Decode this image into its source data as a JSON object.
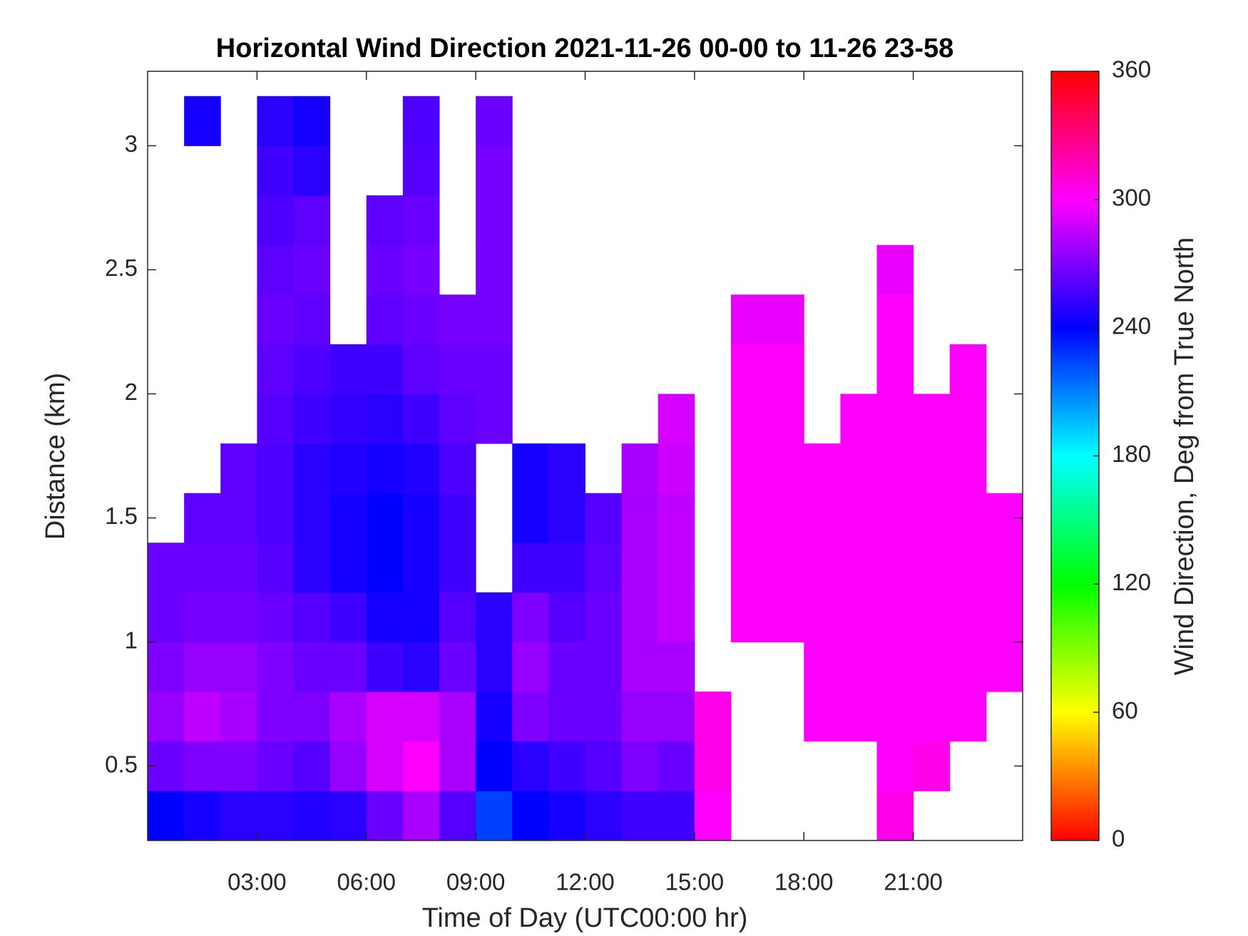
{
  "chart_data": {
    "type": "heatmap",
    "title": "Horizontal Wind Direction 2021-11-26 00-00 to 11-26 23-58",
    "x_label": "Time of Day (UTC00:00 hr)",
    "y_label": "Distance (km)",
    "colorbar_label": "Wind Direction, Deg from True North",
    "colormap": "hsv",
    "x": [
      0.5,
      1.5,
      2.5,
      3.5,
      4.5,
      5.5,
      6.5,
      7.5,
      8.5,
      9.5,
      10.5,
      11.5,
      12.5,
      13.5,
      14.5,
      15.5,
      16.5,
      17.5,
      18.5,
      19.5,
      20.5,
      21.5,
      22.5,
      23.5
    ],
    "y": [
      0.3,
      0.5,
      0.7,
      0.9,
      1.1,
      1.3,
      1.5,
      1.7,
      1.9,
      2.1,
      2.3,
      2.5,
      2.7,
      2.9,
      3.1
    ],
    "values": [
      [
        240,
        245,
        250,
        250,
        248,
        250,
        265,
        280,
        260,
        225,
        240,
        245,
        250,
        255,
        255,
        300,
        null,
        null,
        null,
        null,
        305,
        null,
        null,
        null
      ],
      [
        265,
        270,
        270,
        265,
        260,
        275,
        290,
        300,
        280,
        240,
        250,
        255,
        260,
        270,
        265,
        305,
        null,
        null,
        null,
        null,
        300,
        305,
        null,
        null
      ],
      [
        275,
        285,
        280,
        270,
        270,
        280,
        290,
        290,
        280,
        245,
        270,
        265,
        265,
        275,
        275,
        305,
        null,
        null,
        300,
        300,
        300,
        300,
        300,
        null
      ],
      [
        270,
        275,
        275,
        270,
        265,
        265,
        255,
        250,
        265,
        250,
        275,
        265,
        265,
        280,
        280,
        null,
        null,
        null,
        300,
        300,
        300,
        300,
        300,
        300
      ],
      [
        265,
        268,
        268,
        265,
        260,
        255,
        245,
        245,
        260,
        250,
        270,
        260,
        265,
        280,
        285,
        null,
        300,
        300,
        300,
        300,
        300,
        300,
        300,
        300
      ],
      [
        265,
        265,
        265,
        260,
        250,
        245,
        240,
        245,
        255,
        null,
        255,
        255,
        262,
        280,
        285,
        null,
        300,
        300,
        300,
        300,
        300,
        300,
        300,
        300
      ],
      [
        null,
        262,
        262,
        258,
        250,
        245,
        240,
        245,
        255,
        null,
        245,
        250,
        260,
        280,
        285,
        null,
        300,
        300,
        300,
        300,
        300,
        300,
        300,
        300
      ],
      [
        null,
        null,
        262,
        258,
        250,
        248,
        245,
        248,
        258,
        null,
        245,
        250,
        null,
        280,
        288,
        null,
        300,
        300,
        300,
        300,
        300,
        300,
        300,
        null
      ],
      [
        null,
        null,
        null,
        260,
        255,
        252,
        250,
        255,
        262,
        265,
        null,
        null,
        null,
        null,
        290,
        null,
        300,
        300,
        null,
        300,
        300,
        300,
        300,
        null
      ],
      [
        null,
        null,
        null,
        262,
        258,
        255,
        255,
        262,
        265,
        265,
        null,
        null,
        null,
        null,
        null,
        null,
        300,
        300,
        null,
        null,
        300,
        null,
        300,
        null
      ],
      [
        null,
        null,
        null,
        265,
        262,
        null,
        262,
        265,
        268,
        268,
        null,
        null,
        null,
        null,
        null,
        null,
        295,
        295,
        null,
        null,
        300,
        null,
        null,
        null
      ],
      [
        null,
        null,
        null,
        262,
        265,
        null,
        265,
        268,
        null,
        268,
        null,
        null,
        null,
        null,
        null,
        null,
        null,
        null,
        null,
        null,
        295,
        null,
        null,
        null
      ],
      [
        null,
        null,
        null,
        258,
        262,
        null,
        262,
        265,
        null,
        268,
        null,
        null,
        null,
        null,
        null,
        null,
        null,
        null,
        null,
        null,
        null,
        null,
        null,
        null
      ],
      [
        null,
        null,
        null,
        255,
        250,
        null,
        null,
        260,
        null,
        268,
        null,
        null,
        null,
        null,
        null,
        null,
        null,
        null,
        null,
        null,
        null,
        null,
        null,
        null
      ],
      [
        null,
        245,
        null,
        250,
        245,
        null,
        null,
        258,
        null,
        265,
        null,
        null,
        null,
        null,
        null,
        null,
        null,
        null,
        null,
        null,
        null,
        null,
        null,
        null
      ]
    ],
    "xlim": [
      0,
      24
    ],
    "xticks": [
      {
        "value": 3,
        "label": "03:00"
      },
      {
        "value": 6,
        "label": "06:00"
      },
      {
        "value": 9,
        "label": "09:00"
      },
      {
        "value": 12,
        "label": "12:00"
      },
      {
        "value": 15,
        "label": "15:00"
      },
      {
        "value": 18,
        "label": "18:00"
      },
      {
        "value": 21,
        "label": "21:00"
      }
    ],
    "ylim": [
      0.2,
      3.3
    ],
    "yticks": [
      0.5,
      1,
      1.5,
      2,
      2.5,
      3
    ],
    "clim": [
      0,
      360
    ],
    "cticks": [
      0,
      60,
      120,
      180,
      240,
      300,
      360
    ],
    "grid": false
  }
}
